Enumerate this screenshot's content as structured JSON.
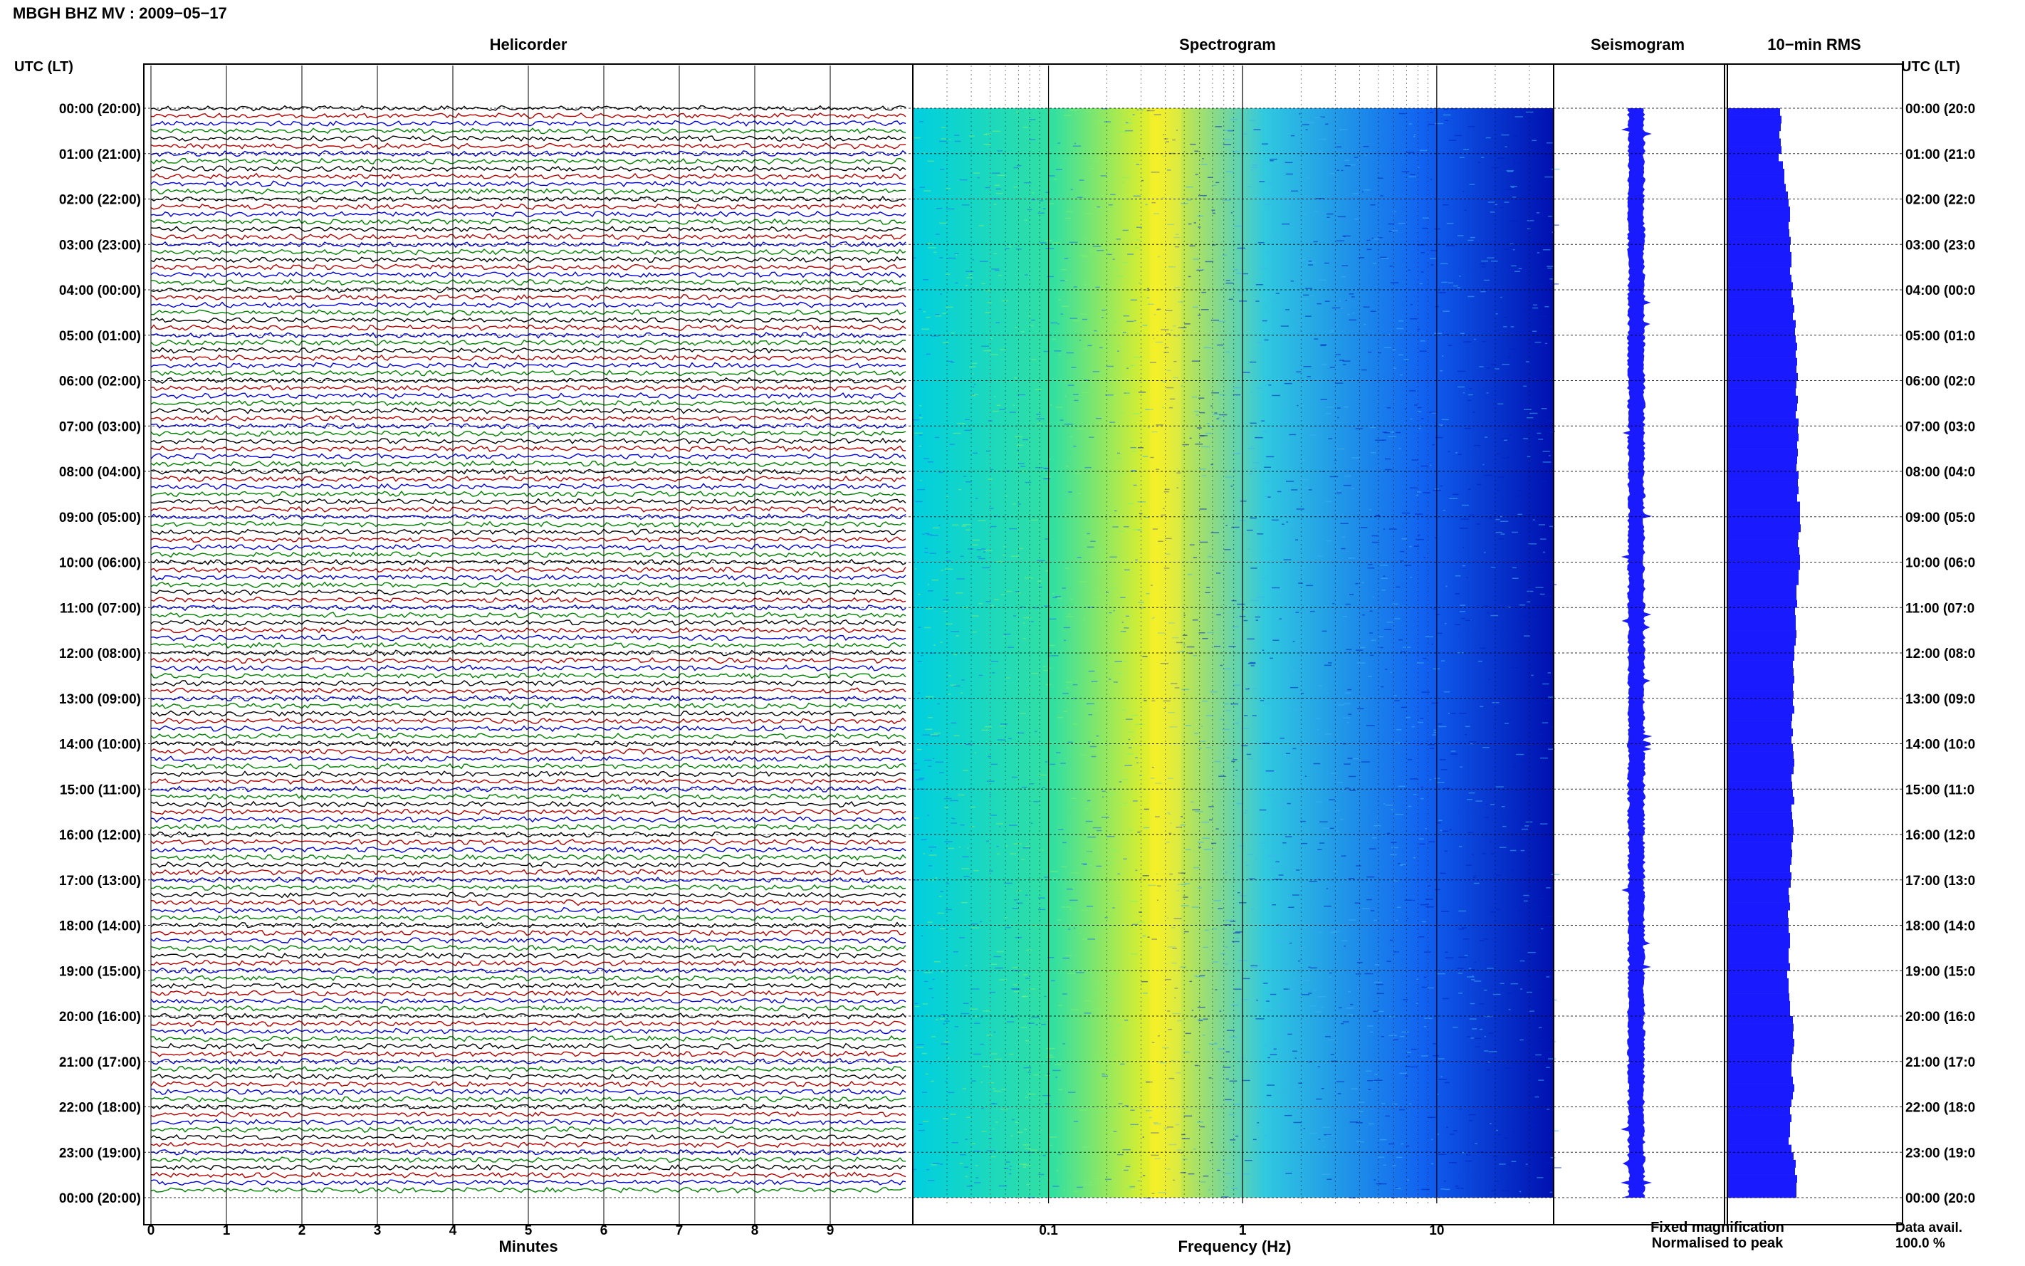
{
  "figure": {
    "title": "MBGH BHZ MV : 2009−05−17",
    "left_axis_label": "UTC (LT)",
    "right_axis_label": "UTC (LT)",
    "footer": {
      "fixed": "Fixed magnification",
      "normalised": "Normalised to peak",
      "avail_label": "Data avail.",
      "avail_value": "100.0 %"
    }
  },
  "colors": {
    "helicorder_lines": [
      "#000000",
      "#b30000",
      "#0000d8",
      "#008000"
    ],
    "spectrogram_stops": [
      "#00cfe0",
      "#33e0a0",
      "#f0f020",
      "#30c8e0",
      "#1060f0",
      "#0010b0"
    ],
    "seismogram": "#1a1aff",
    "rms_bar": "#1a1aff",
    "fixed_text": "#0000ff",
    "normalised_text": "#ff0000"
  },
  "chart_data": [
    {
      "type": "line",
      "title": "Helicorder",
      "xlabel": "Minutes",
      "xlim": [
        0,
        10
      ],
      "xticks": [
        "0",
        "1",
        "2",
        "3",
        "4",
        "5",
        "6",
        "7",
        "8",
        "9"
      ],
      "rows_per_hour": 6,
      "row_minutes": 10,
      "y_tick_labels": [
        "00:00 (20:00)",
        "01:00 (21:00)",
        "02:00 (22:00)",
        "03:00 (23:00)",
        "04:00 (00:00)",
        "05:00 (01:00)",
        "06:00 (02:00)",
        "07:00 (03:00)",
        "08:00 (04:00)",
        "09:00 (05:00)",
        "10:00 (06:00)",
        "11:00 (07:00)",
        "12:00 (08:00)",
        "13:00 (09:00)",
        "14:00 (10:00)",
        "15:00 (11:00)",
        "16:00 (12:00)",
        "17:00 (13:00)",
        "18:00 (14:00)",
        "19:00 (15:00)",
        "20:00 (16:00)",
        "21:00 (17:00)",
        "22:00 (18:00)",
        "23:00 (19:00)",
        "00:00 (20:00)"
      ],
      "right_tick_labels": [
        "00:00 (20:0",
        "01:00 (21:0",
        "02:00 (22:0",
        "03:00 (23:0",
        "04:00 (00:0",
        "05:00 (01:0",
        "06:00 (02:0",
        "07:00 (03:0",
        "08:00 (04:0",
        "09:00 (05:0",
        "10:00 (06:0",
        "11:00 (07:0",
        "12:00 (08:0",
        "13:00 (09:0",
        "14:00 (10:0",
        "15:00 (11:0",
        "16:00 (12:0",
        "17:00 (13:0",
        "18:00 (14:0",
        "19:00 (15:0",
        "20:00 (16:0",
        "21:00 (17:0",
        "22:00 (18:0",
        "23:00 (19:0",
        "00:00 (20:0"
      ]
    },
    {
      "type": "heatmap",
      "title": "Spectrogram",
      "xlabel": "Frequency (Hz)",
      "x_scale": "log",
      "xlim": [
        0.02,
        40
      ],
      "xticks": [
        0.1,
        1,
        10
      ],
      "xtick_labels": [
        "0.1",
        "1",
        "10"
      ],
      "peak_frequency_hz": 0.4
    },
    {
      "type": "line",
      "title": "Seismogram",
      "hours": 24
    },
    {
      "type": "bar",
      "title": "10−min RMS",
      "interval_minutes": 10,
      "values_relative": [
        0.74,
        0.76,
        0.75,
        0.73,
        0.75,
        0.76,
        0.72,
        0.78,
        0.8,
        0.8,
        0.82,
        0.85,
        0.86,
        0.88,
        0.88,
        0.86,
        0.87,
        0.89,
        0.88,
        0.9,
        0.9,
        0.88,
        0.9,
        0.92,
        0.9,
        0.92,
        0.94,
        0.92,
        0.96,
        0.95,
        0.96,
        0.98,
        0.96,
        0.98,
        0.97,
        0.99,
        0.97,
        0.96,
        0.99,
        0.98,
        0.96,
        1.0,
        0.99,
        1.0,
        0.98,
        0.99,
        0.98,
        0.97,
        1.0,
        0.99,
        1.0,
        0.98,
        1.02,
        1.02,
        1.02,
        1.03,
        1.0,
        0.99,
        1.01,
        1.02,
        1.02,
        1.0,
        1.0,
        0.97,
        0.97,
        0.98,
        0.95,
        0.96,
        0.96,
        0.97,
        0.96,
        0.94,
        0.94,
        0.92,
        0.93,
        0.94,
        0.92,
        0.93,
        0.92,
        0.94,
        0.91,
        0.9,
        0.92,
        0.9,
        0.92,
        0.93,
        0.94,
        0.93,
        0.9,
        0.91,
        0.92,
        0.94,
        0.9,
        0.91,
        0.92,
        0.93,
        0.92,
        0.9,
        0.91,
        0.9,
        0.88,
        0.9,
        0.89,
        0.86,
        0.87,
        0.88,
        0.85,
        0.86,
        0.86,
        0.88,
        0.88,
        0.86,
        0.86,
        0.88,
        0.84,
        0.86,
        0.86,
        0.87,
        0.88,
        0.88,
        0.92,
        0.93,
        0.92,
        0.94,
        0.93,
        0.91,
        0.9,
        0.9,
        0.92,
        0.94,
        0.92,
        0.9,
        0.88,
        0.9,
        0.88,
        0.88,
        0.86,
        0.9,
        0.93,
        0.96,
        0.95,
        0.98,
        0.97,
        0.97
      ]
    }
  ]
}
